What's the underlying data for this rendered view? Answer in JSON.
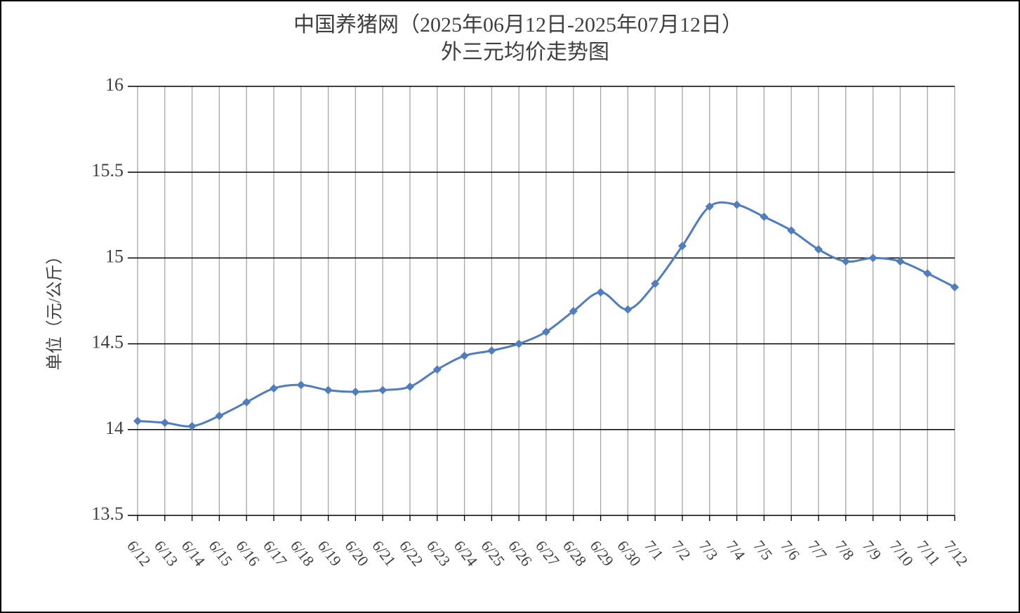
{
  "chart_data": {
    "type": "line",
    "title": "中国养猪网（2025年06月12日-2025年07月12日）",
    "subtitle": "外三元均价走势图",
    "y_label": "单位（元/公斤）",
    "categories": [
      "6/12",
      "6/13",
      "6/14",
      "6/15",
      "6/16",
      "6/17",
      "6/18",
      "6/19",
      "6/20",
      "6/21",
      "6/22",
      "6/23",
      "6/24",
      "6/25",
      "6/26",
      "6/27",
      "6/28",
      "6/29",
      "6/30",
      "7/1",
      "7/2",
      "7/3",
      "7/4",
      "7/5",
      "7/6",
      "7/7",
      "7/8",
      "7/9",
      "7/10",
      "7/11",
      "7/12"
    ],
    "series": [
      {
        "color": "#4f7dbd",
        "values": [
          14.05,
          14.04,
          14.02,
          14.08,
          14.16,
          14.24,
          14.26,
          14.23,
          14.22,
          14.23,
          14.25,
          14.35,
          14.43,
          14.46,
          14.5,
          14.57,
          14.69,
          14.8,
          14.7,
          14.85,
          15.07,
          15.3,
          15.31,
          15.24,
          15.16,
          15.05,
          14.98,
          15.0,
          14.98,
          14.91,
          14.83
        ]
      }
    ],
    "ylim": [
      13.5,
      16
    ],
    "yticks": [
      13.5,
      14,
      14.5,
      15,
      15.5,
      16
    ],
    "grid": true
  }
}
